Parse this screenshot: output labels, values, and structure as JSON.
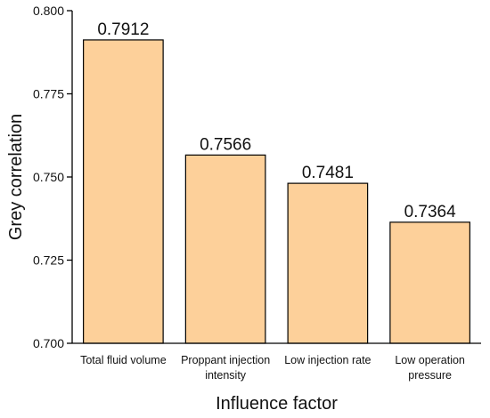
{
  "chart_data": {
    "type": "bar",
    "categories": [
      [
        "Total fluid volume"
      ],
      [
        "Proppant injection",
        "intensity"
      ],
      [
        "Low injection rate"
      ],
      [
        "Low operation",
        "pressure"
      ]
    ],
    "values": [
      0.7912,
      0.7566,
      0.7481,
      0.7364
    ],
    "data_labels": [
      "0.7912",
      "0.7566",
      "0.7481",
      "0.7364"
    ],
    "xlabel": "Influence factor",
    "ylabel": "Grey correlation",
    "ylim": [
      0.7,
      0.8
    ],
    "yticks": [
      0.7,
      0.725,
      0.75,
      0.775,
      0.8
    ],
    "ytick_labels": [
      "0.700",
      "0.725",
      "0.750",
      "0.775",
      "0.800"
    ],
    "grid": false,
    "colors": {
      "bar_fill": "#FDD09A",
      "bar_stroke": "#000000",
      "axis": "#000000"
    }
  }
}
